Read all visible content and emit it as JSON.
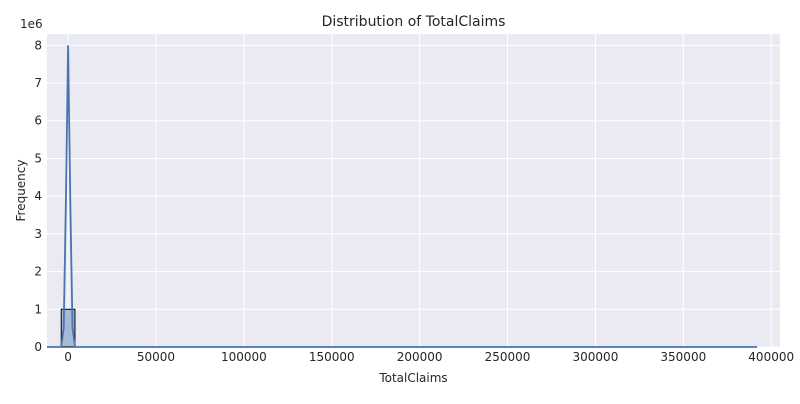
{
  "chart_data": {
    "type": "histogram",
    "title": "Distribution of TotalClaims",
    "xlabel": "TotalClaims",
    "ylabel": "Frequency",
    "y_offset_label": "1e6",
    "y_scale_multiplier": 1000000,
    "xlim": [
      -12000,
      405000
    ],
    "ylim": [
      0,
      8.3
    ],
    "x_ticks": [
      0,
      50000,
      100000,
      150000,
      200000,
      250000,
      300000,
      350000,
      400000
    ],
    "x_tick_labels": [
      "0",
      "50000",
      "100000",
      "150000",
      "200000",
      "250000",
      "300000",
      "350000",
      "400000"
    ],
    "y_ticks": [
      0,
      1,
      2,
      3,
      4,
      5,
      6,
      7,
      8
    ],
    "y_tick_labels": [
      "0",
      "1",
      "2",
      "3",
      "4",
      "5",
      "6",
      "7",
      "8"
    ],
    "grid": true,
    "style": "seaborn-darkgrid",
    "bars": [
      {
        "x0": -3900,
        "x1": 3900,
        "value": 1.0
      }
    ],
    "kde_line": {
      "x": [
        -12000,
        -4000,
        -2500,
        -1200,
        0,
        1200,
        2500,
        4000,
        392000
      ],
      "y": [
        0,
        0,
        0.5,
        4.0,
        8.0,
        4.0,
        0.5,
        0,
        0
      ]
    },
    "colors": {
      "background": "#eaeaf2",
      "grid": "#ffffff",
      "bar_fill": "#a4bad6",
      "bar_edge": "#000000",
      "line": "#4c72b0"
    }
  }
}
